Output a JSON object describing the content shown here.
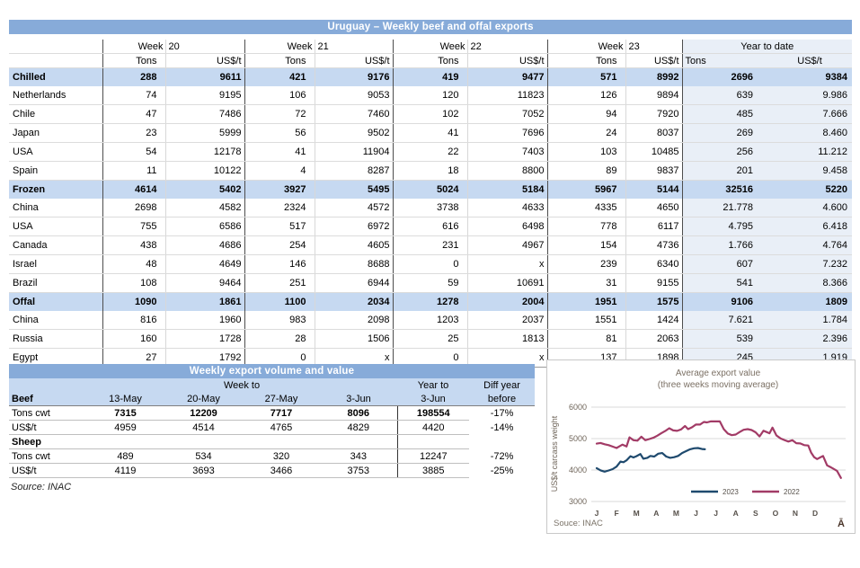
{
  "table1": {
    "title": "Uruguay – Weekly beef and offal exports",
    "week_word": "Week",
    "week_numbers": [
      "20",
      "21",
      "22",
      "23"
    ],
    "ytd_header": "Year to date",
    "tons_label": "Tons",
    "usdt_label": "US$/t",
    "rows": [
      {
        "label": "Chilled",
        "band": true,
        "values": [
          "288",
          "9611",
          "421",
          "9176",
          "419",
          "9477",
          "571",
          "8992",
          "2696",
          "9384"
        ]
      },
      {
        "label": "Netherlands",
        "band": false,
        "values": [
          "74",
          "9195",
          "106",
          "9053",
          "120",
          "11823",
          "126",
          "9894",
          "639",
          "9.986"
        ]
      },
      {
        "label": "Chile",
        "band": false,
        "values": [
          "47",
          "7486",
          "72",
          "7460",
          "102",
          "7052",
          "94",
          "7920",
          "485",
          "7.666"
        ]
      },
      {
        "label": "Japan",
        "band": false,
        "values": [
          "23",
          "5999",
          "56",
          "9502",
          "41",
          "7696",
          "24",
          "8037",
          "269",
          "8.460"
        ]
      },
      {
        "label": "USA",
        "band": false,
        "values": [
          "54",
          "12178",
          "41",
          "11904",
          "22",
          "7403",
          "103",
          "10485",
          "256",
          "11.212"
        ]
      },
      {
        "label": "Spain",
        "band": false,
        "values": [
          "11",
          "10122",
          "4",
          "8287",
          "18",
          "8800",
          "89",
          "9837",
          "201",
          "9.458"
        ]
      },
      {
        "label": "Frozen",
        "band": true,
        "values": [
          "4614",
          "5402",
          "3927",
          "5495",
          "5024",
          "5184",
          "5967",
          "5144",
          "32516",
          "5220"
        ]
      },
      {
        "label": "China",
        "band": false,
        "values": [
          "2698",
          "4582",
          "2324",
          "4572",
          "3738",
          "4633",
          "4335",
          "4650",
          "21.778",
          "4.600"
        ]
      },
      {
        "label": "USA",
        "band": false,
        "values": [
          "755",
          "6586",
          "517",
          "6972",
          "616",
          "6498",
          "778",
          "6117",
          "4.795",
          "6.418"
        ]
      },
      {
        "label": "Canada",
        "band": false,
        "values": [
          "438",
          "4686",
          "254",
          "4605",
          "231",
          "4967",
          "154",
          "4736",
          "1.766",
          "4.764"
        ]
      },
      {
        "label": "Israel",
        "band": false,
        "values": [
          "48",
          "4649",
          "146",
          "8688",
          "0",
          "x",
          "239",
          "6340",
          "607",
          "7.232"
        ]
      },
      {
        "label": "Brazil",
        "band": false,
        "values": [
          "108",
          "9464",
          "251",
          "6944",
          "59",
          "10691",
          "31",
          "9155",
          "541",
          "8.366"
        ]
      },
      {
        "label": "Offal",
        "band": true,
        "values": [
          "1090",
          "1861",
          "1100",
          "2034",
          "1278",
          "2004",
          "1951",
          "1575",
          "9106",
          "1809"
        ]
      },
      {
        "label": "China",
        "band": false,
        "values": [
          "816",
          "1960",
          "983",
          "2098",
          "1203",
          "2037",
          "1551",
          "1424",
          "7.621",
          "1.784"
        ]
      },
      {
        "label": "Russia",
        "band": false,
        "values": [
          "160",
          "1728",
          "28",
          "1506",
          "25",
          "1813",
          "81",
          "2063",
          "539",
          "2.396"
        ]
      },
      {
        "label": "Egypt",
        "band": false,
        "values": [
          "27",
          "1792",
          "0",
          "x",
          "0",
          "x",
          "137",
          "1898",
          "245",
          "1.919"
        ]
      }
    ]
  },
  "table2": {
    "title": "Weekly export volume and value",
    "week_to": "Week to",
    "year_to_line1": "Year to",
    "diff_line1": "Diff year",
    "diff_line2": "before",
    "date_headers": [
      "13-May",
      "20-May",
      "27-May",
      "3-Jun"
    ],
    "year_to_date_header": "3-Jun",
    "sections": [
      {
        "name": "Beef",
        "rows": [
          {
            "label": "Tons cwt",
            "bold": true,
            "values": [
              "7315",
              "12209",
              "7717",
              "8096",
              "198554",
              "-17%"
            ]
          },
          {
            "label": "US$/t",
            "bold": false,
            "values": [
              "4959",
              "4514",
              "4765",
              "4829",
              "4420",
              "-14%"
            ]
          }
        ]
      },
      {
        "name": "Sheep",
        "rows": [
          {
            "label": "Tons cwt",
            "bold": false,
            "values": [
              "489",
              "534",
              "320",
              "343",
              "12247",
              "-72%"
            ]
          },
          {
            "label": "US$/t",
            "bold": false,
            "values": [
              "4119",
              "3693",
              "3466",
              "3753",
              "3885",
              "-25%"
            ]
          }
        ]
      }
    ],
    "source": "Source: INAC"
  },
  "chart_data": {
    "type": "line",
    "title": "Average export value",
    "subtitle": "(three weeks moving average)",
    "ylabel": "US$/t carcass weight",
    "ylim": [
      3000,
      6000
    ],
    "yticks": [
      3000,
      4000,
      5000,
      6000
    ],
    "months": [
      "J",
      "F",
      "M",
      "A",
      "M",
      "J",
      "J",
      "A",
      "S",
      "O",
      "N",
      "D"
    ],
    "grid": true,
    "legend_position": "inside-bottom",
    "source": "Souce: INAC",
    "corner_glyph": "Ā",
    "series": [
      {
        "name": "2023",
        "color": "#1f4a6e",
        "points": [
          [
            0.0,
            4060
          ],
          [
            0.2,
            3990
          ],
          [
            0.4,
            3950
          ],
          [
            0.6,
            3985
          ],
          [
            0.8,
            4030
          ],
          [
            1.0,
            4110
          ],
          [
            1.2,
            4270
          ],
          [
            1.35,
            4250
          ],
          [
            1.5,
            4310
          ],
          [
            1.7,
            4440
          ],
          [
            1.85,
            4400
          ],
          [
            2.0,
            4440
          ],
          [
            2.2,
            4510
          ],
          [
            2.35,
            4360
          ],
          [
            2.55,
            4390
          ],
          [
            2.7,
            4450
          ],
          [
            2.9,
            4430
          ],
          [
            3.1,
            4520
          ],
          [
            3.3,
            4540
          ],
          [
            3.5,
            4430
          ],
          [
            3.7,
            4390
          ],
          [
            3.9,
            4410
          ],
          [
            4.1,
            4450
          ],
          [
            4.3,
            4540
          ],
          [
            4.5,
            4600
          ],
          [
            4.7,
            4660
          ],
          [
            4.9,
            4690
          ],
          [
            5.1,
            4700
          ],
          [
            5.3,
            4670
          ],
          [
            5.45,
            4660
          ]
        ]
      },
      {
        "name": "2022",
        "color": "#a23b66",
        "points": [
          [
            0.0,
            4840
          ],
          [
            0.2,
            4860
          ],
          [
            0.4,
            4820
          ],
          [
            0.6,
            4790
          ],
          [
            0.8,
            4745
          ],
          [
            1.0,
            4700
          ],
          [
            1.15,
            4755
          ],
          [
            1.3,
            4810
          ],
          [
            1.5,
            4750
          ],
          [
            1.65,
            5040
          ],
          [
            1.85,
            4950
          ],
          [
            2.05,
            4935
          ],
          [
            2.25,
            5060
          ],
          [
            2.45,
            4950
          ],
          [
            2.65,
            4985
          ],
          [
            2.85,
            5025
          ],
          [
            3.05,
            5090
          ],
          [
            3.25,
            5170
          ],
          [
            3.45,
            5240
          ],
          [
            3.65,
            5330
          ],
          [
            3.85,
            5260
          ],
          [
            4.05,
            5245
          ],
          [
            4.25,
            5290
          ],
          [
            4.45,
            5400
          ],
          [
            4.6,
            5300
          ],
          [
            4.8,
            5360
          ],
          [
            5.0,
            5450
          ],
          [
            5.2,
            5445
          ],
          [
            5.4,
            5530
          ],
          [
            5.55,
            5515
          ],
          [
            5.75,
            5550
          ],
          [
            6.0,
            5545
          ],
          [
            6.2,
            5545
          ],
          [
            6.4,
            5300
          ],
          [
            6.6,
            5160
          ],
          [
            6.8,
            5110
          ],
          [
            7.0,
            5130
          ],
          [
            7.2,
            5210
          ],
          [
            7.4,
            5280
          ],
          [
            7.6,
            5300
          ],
          [
            7.8,
            5270
          ],
          [
            8.0,
            5200
          ],
          [
            8.2,
            5070
          ],
          [
            8.4,
            5250
          ],
          [
            8.55,
            5210
          ],
          [
            8.7,
            5170
          ],
          [
            8.85,
            5350
          ],
          [
            9.05,
            5100
          ],
          [
            9.25,
            5010
          ],
          [
            9.45,
            4955
          ],
          [
            9.65,
            4905
          ],
          [
            9.85,
            4950
          ],
          [
            10.05,
            4855
          ],
          [
            10.25,
            4845
          ],
          [
            10.45,
            4790
          ],
          [
            10.65,
            4780
          ],
          [
            10.8,
            4550
          ],
          [
            10.95,
            4410
          ],
          [
            11.1,
            4350
          ],
          [
            11.25,
            4400
          ],
          [
            11.4,
            4445
          ],
          [
            11.6,
            4150
          ],
          [
            11.75,
            4100
          ],
          [
            11.9,
            4050
          ],
          [
            12.1,
            3975
          ],
          [
            12.3,
            3750
          ]
        ]
      }
    ]
  }
}
